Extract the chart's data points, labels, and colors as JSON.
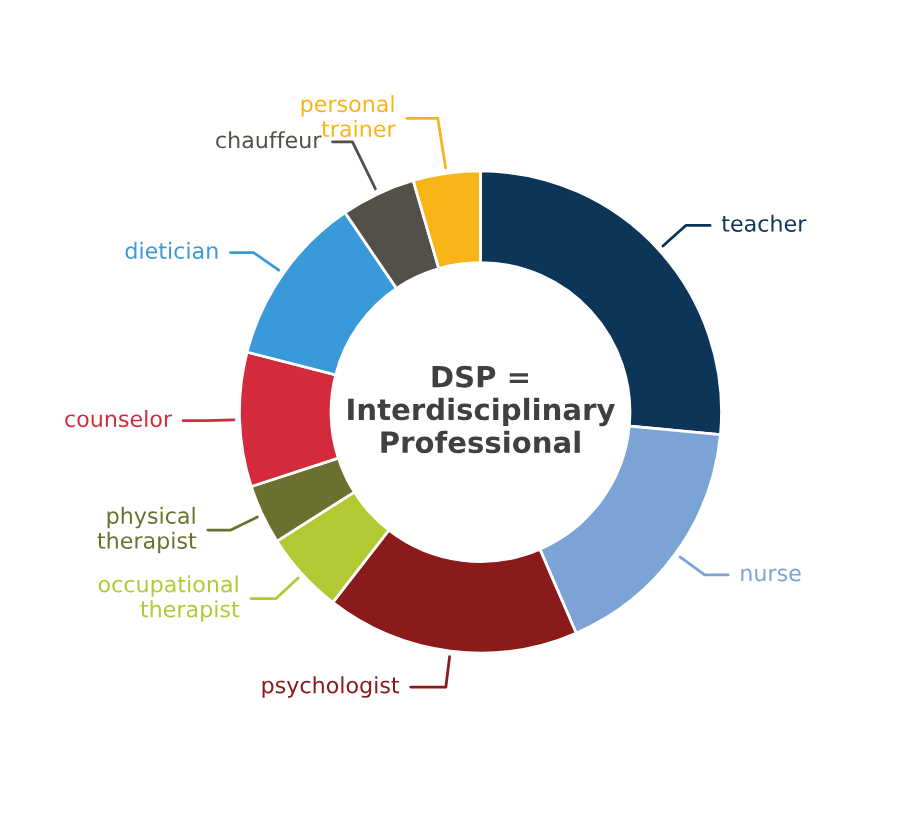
{
  "chart_data": {
    "type": "donut",
    "categories": [
      "teacher",
      "nurse",
      "psychologist",
      "occupational\ntherapist",
      "physical\ntherapist",
      "counselor",
      "dietician",
      "chauffeur",
      "personal\ntrainer"
    ],
    "values": [
      26.5,
      17,
      17,
      5.5,
      4,
      9,
      11.5,
      5,
      4.5
    ],
    "colors": [
      "#0d3558",
      "#7ba3d6",
      "#8b1a1a",
      "#b3c934",
      "#6b7030",
      "#d42b3c",
      "#3a9ad9",
      "#554f4a",
      "#f7b519"
    ],
    "annotations": [
      "DSP =\nInterdisciplinary\nProfessional"
    ],
    "legend": false
  }
}
